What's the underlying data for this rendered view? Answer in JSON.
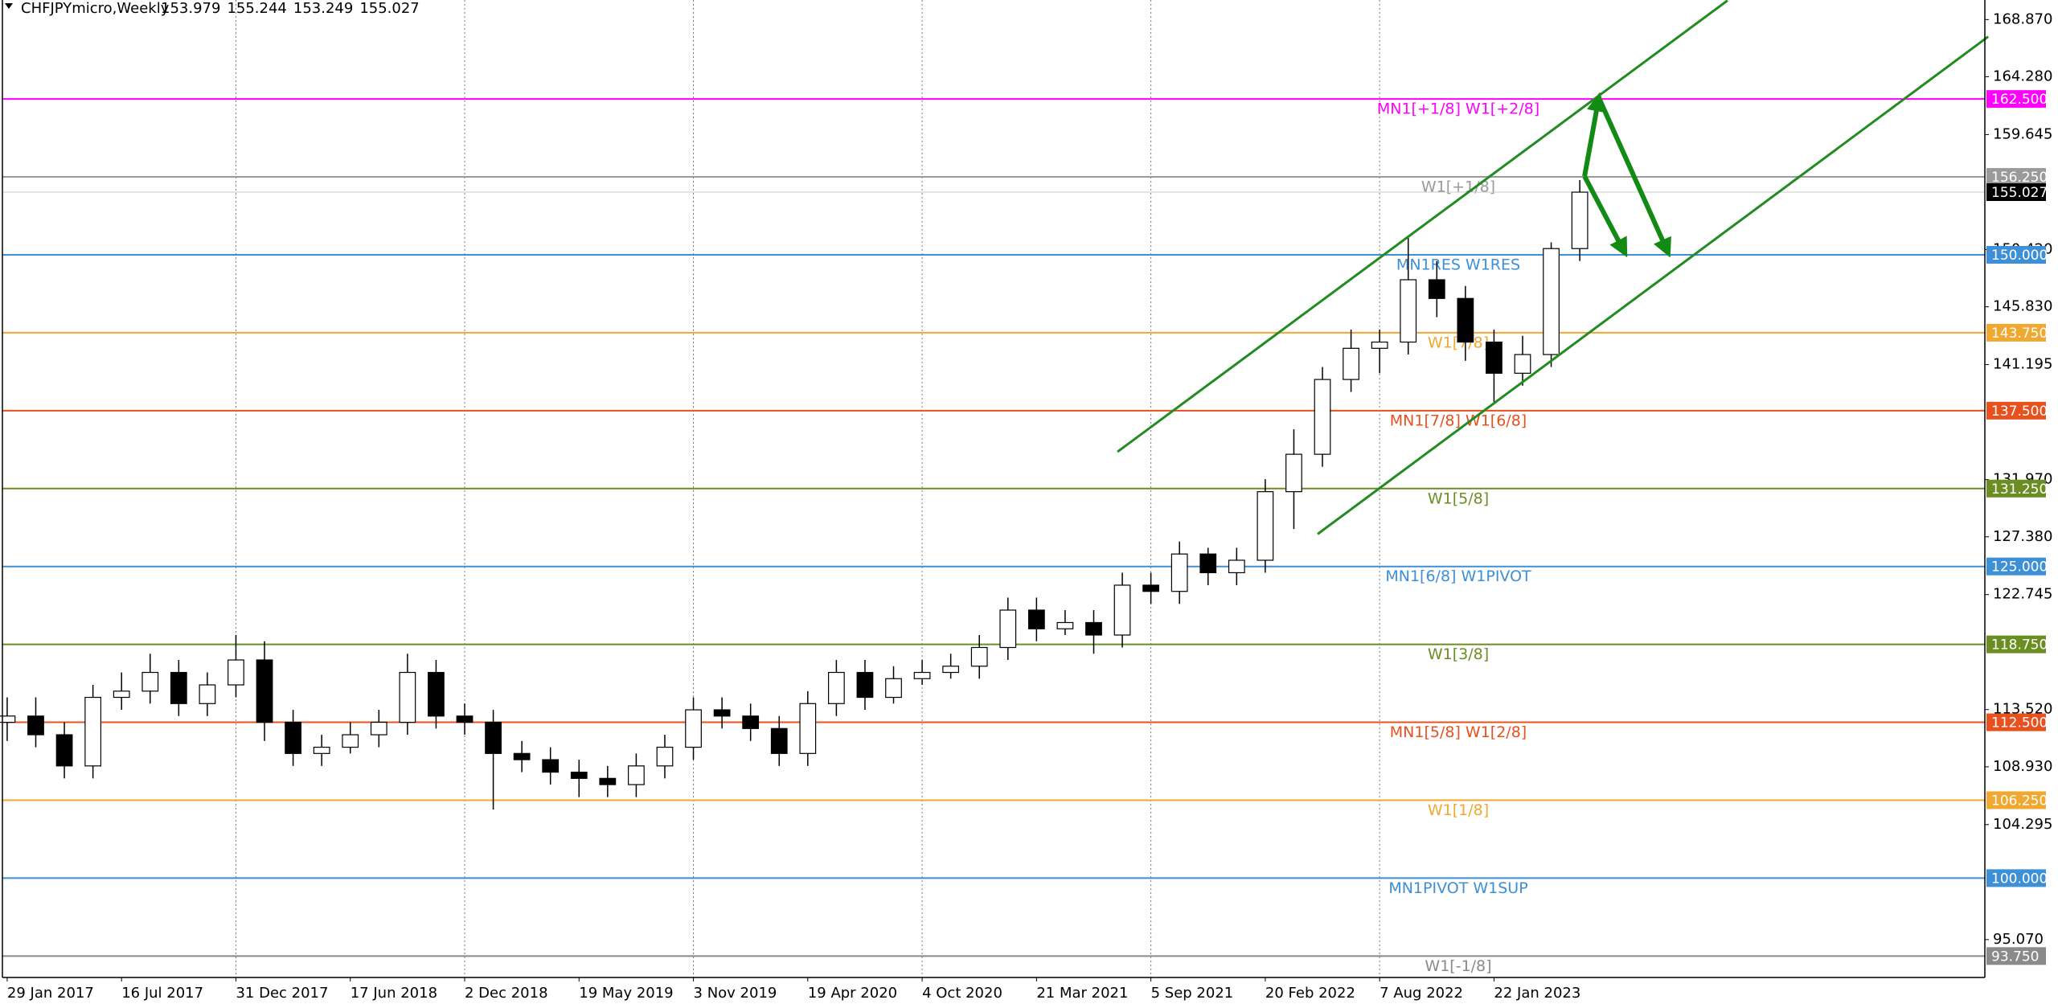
{
  "chart_data": {
    "type": "candlestick",
    "title": "CHFJPYmicro,Weekly",
    "ohlc": [
      153.979,
      155.244,
      153.249,
      155.027
    ],
    "xlim": [
      -1,
      415
    ],
    "ylim": [
      92.03,
      170.44
    ],
    "xticks": [
      {
        "value": 0,
        "label": "29 Jan 2017"
      },
      {
        "value": 24,
        "label": "16 Jul 2017"
      },
      {
        "value": 48,
        "label": "31 Dec 2017"
      },
      {
        "value": 72,
        "label": "17 Jun 2018"
      },
      {
        "value": 96,
        "label": "2 Dec 2018"
      },
      {
        "value": 120,
        "label": "19 May 2019"
      },
      {
        "value": 144,
        "label": "3 Nov 2019"
      },
      {
        "value": 168,
        "label": "19 Apr 2020"
      },
      {
        "value": 192,
        "label": "4 Oct 2020"
      },
      {
        "value": 216,
        "label": "21 Mar 2021"
      },
      {
        "value": 240,
        "label": "5 Sep 2021"
      },
      {
        "value": 264,
        "label": "20 Feb 2022"
      },
      {
        "value": 288,
        "label": "7 Aug 2022"
      },
      {
        "value": 312,
        "label": "22 Jan 2023"
      }
    ],
    "yticks": [
      {
        "value": 168.87,
        "label": "168.870"
      },
      {
        "value": 164.28,
        "label": "164.280"
      },
      {
        "value": 159.645,
        "label": "159.645"
      },
      {
        "value": 150.42,
        "label": "150.420"
      },
      {
        "value": 145.83,
        "label": "145.830"
      },
      {
        "value": 141.195,
        "label": "141.195"
      },
      {
        "value": 131.97,
        "label": "131.970"
      },
      {
        "value": 127.38,
        "label": "127.380"
      },
      {
        "value": 122.745,
        "label": "122.745"
      },
      {
        "value": 113.52,
        "label": "113.520"
      },
      {
        "value": 108.93,
        "label": "108.930"
      },
      {
        "value": 104.295,
        "label": "104.295"
      },
      {
        "value": 95.07,
        "label": "95.070"
      }
    ],
    "grid": true,
    "up_color": "#ffffff",
    "down_color": "#000000",
    "x": [
      0,
      6,
      12,
      18,
      24,
      30,
      36,
      42,
      48,
      54,
      60,
      66,
      72,
      78,
      84,
      90,
      96,
      102,
      108,
      114,
      120,
      126,
      132,
      138,
      144,
      150,
      156,
      162,
      168,
      174,
      180,
      186,
      192,
      198,
      204,
      210,
      216,
      222,
      228,
      234,
      240,
      246,
      252,
      258,
      264,
      270,
      276,
      282,
      288,
      294,
      300,
      306,
      312,
      318,
      324,
      330
    ],
    "open": [
      112.5,
      113.0,
      111.5,
      109.0,
      114.5,
      115.0,
      116.5,
      114.0,
      115.5,
      117.5,
      112.5,
      110.0,
      110.5,
      111.5,
      112.5,
      116.5,
      113.0,
      112.5,
      110.0,
      109.5,
      108.5,
      108.0,
      107.5,
      109.0,
      110.5,
      113.5,
      113.0,
      112.0,
      110.0,
      114.0,
      116.5,
      114.5,
      116.0,
      116.5,
      117.0,
      118.5,
      121.5,
      120.0,
      120.5,
      119.5,
      123.5,
      123.0,
      126.0,
      124.5,
      125.5,
      131.0,
      134.0,
      140.0,
      142.5,
      143.0,
      148.0,
      146.5,
      143.0,
      140.5,
      142.0,
      150.5
    ],
    "high": [
      114.5,
      114.5,
      112.5,
      115.5,
      116.5,
      118.0,
      117.5,
      116.5,
      119.5,
      119.0,
      113.5,
      111.5,
      112.5,
      113.5,
      118.0,
      117.5,
      114.0,
      113.5,
      111.0,
      110.5,
      109.5,
      109.0,
      110.0,
      111.5,
      114.5,
      114.5,
      114.0,
      113.0,
      115.0,
      117.5,
      117.5,
      117.0,
      117.5,
      118.0,
      119.5,
      122.5,
      122.5,
      121.5,
      121.5,
      124.5,
      124.5,
      127.0,
      126.5,
      126.5,
      132.0,
      136.0,
      141.0,
      144.0,
      144.0,
      151.5,
      149.5,
      147.5,
      144.0,
      143.5,
      151.0,
      156.0
    ],
    "low": [
      111.0,
      110.5,
      108.0,
      108.0,
      113.5,
      114.0,
      113.0,
      113.0,
      114.5,
      111.0,
      109.0,
      109.0,
      110.0,
      110.5,
      111.5,
      112.0,
      111.5,
      105.5,
      108.5,
      107.5,
      106.5,
      106.5,
      106.5,
      108.0,
      109.5,
      112.0,
      111.0,
      109.0,
      109.0,
      113.0,
      113.5,
      114.0,
      115.5,
      116.0,
      116.0,
      117.5,
      119.0,
      119.5,
      118.0,
      118.5,
      122.0,
      122.0,
      123.5,
      123.5,
      124.5,
      128.0,
      133.0,
      139.0,
      140.5,
      142.0,
      145.0,
      141.5,
      138.0,
      139.5,
      141.0,
      149.5
    ],
    "close": [
      113.0,
      111.5,
      109.0,
      114.5,
      115.0,
      116.5,
      114.0,
      115.5,
      117.5,
      112.5,
      110.0,
      110.5,
      111.5,
      112.5,
      116.5,
      113.0,
      112.5,
      110.0,
      109.5,
      108.5,
      108.0,
      107.5,
      109.0,
      110.5,
      113.5,
      113.0,
      112.0,
      110.0,
      114.0,
      116.5,
      114.5,
      116.0,
      116.5,
      117.0,
      118.5,
      121.5,
      120.0,
      120.5,
      119.5,
      123.5,
      123.0,
      126.0,
      124.5,
      125.5,
      131.0,
      134.0,
      140.0,
      142.5,
      143.0,
      148.0,
      146.5,
      143.0,
      140.5,
      142.0,
      150.5,
      155.027
    ],
    "levels": [
      {
        "value": 162.5,
        "label": "MN1[+1/8] W1[+2/8]",
        "price_label": "162.500",
        "color": "#ff00ff"
      },
      {
        "value": 156.25,
        "label": "W1[+1/8]",
        "price_label": "156.250",
        "color": "#9a9a9a"
      },
      {
        "value": 150.0,
        "label": "MN1RES W1RES",
        "price_label": "150.000",
        "color": "#3d8fd6"
      },
      {
        "value": 143.75,
        "label": "W1[7/8]",
        "price_label": "143.750",
        "color": "#f0a830"
      },
      {
        "value": 137.5,
        "label": "MN1[7/8] W1[6/8]",
        "price_label": "137.500",
        "color": "#e8501e"
      },
      {
        "value": 131.25,
        "label": "W1[5/8]",
        "price_label": "131.250",
        "color": "#6b8e23"
      },
      {
        "value": 125.0,
        "label": "MN1[6/8] W1PIVOT",
        "price_label": "125.000",
        "color": "#3d8fd6"
      },
      {
        "value": 118.75,
        "label": "W1[3/8]",
        "price_label": "118.750",
        "color": "#6b8e23"
      },
      {
        "value": 112.5,
        "label": "MN1[5/8] W1[2/8]",
        "price_label": "112.500",
        "color": "#e8501e"
      },
      {
        "value": 106.25,
        "label": "W1[1/8]",
        "price_label": "106.250",
        "color": "#f0a830"
      },
      {
        "value": 100.0,
        "label": "MN1PIVOT W1SUP",
        "price_label": "100.000",
        "color": "#3d8fd6"
      },
      {
        "value": 93.75,
        "label": "W1[-1/8]",
        "price_label": "93.750",
        "color": "#8a8a8a"
      }
    ],
    "trendlines": [
      {
        "x": [
          233,
          361
        ],
        "y": [
          134.2,
          170.4
        ],
        "color": "#228b22"
      },
      {
        "x": [
          275,
          415.7
        ],
        "y": [
          127.6,
          167.5
        ],
        "color": "#228b22"
      }
    ],
    "arrows": [
      {
        "x": [
          331,
          334
        ],
        "y": [
          156.3,
          162.6
        ],
        "color": "#138a13"
      },
      {
        "x": [
          334,
          348.5
        ],
        "y": [
          162.6,
          150.2
        ],
        "color": "#138a13"
      },
      {
        "x": [
          331,
          339.4
        ],
        "y": [
          156.3,
          150.2
        ],
        "color": "#138a13"
      }
    ]
  }
}
